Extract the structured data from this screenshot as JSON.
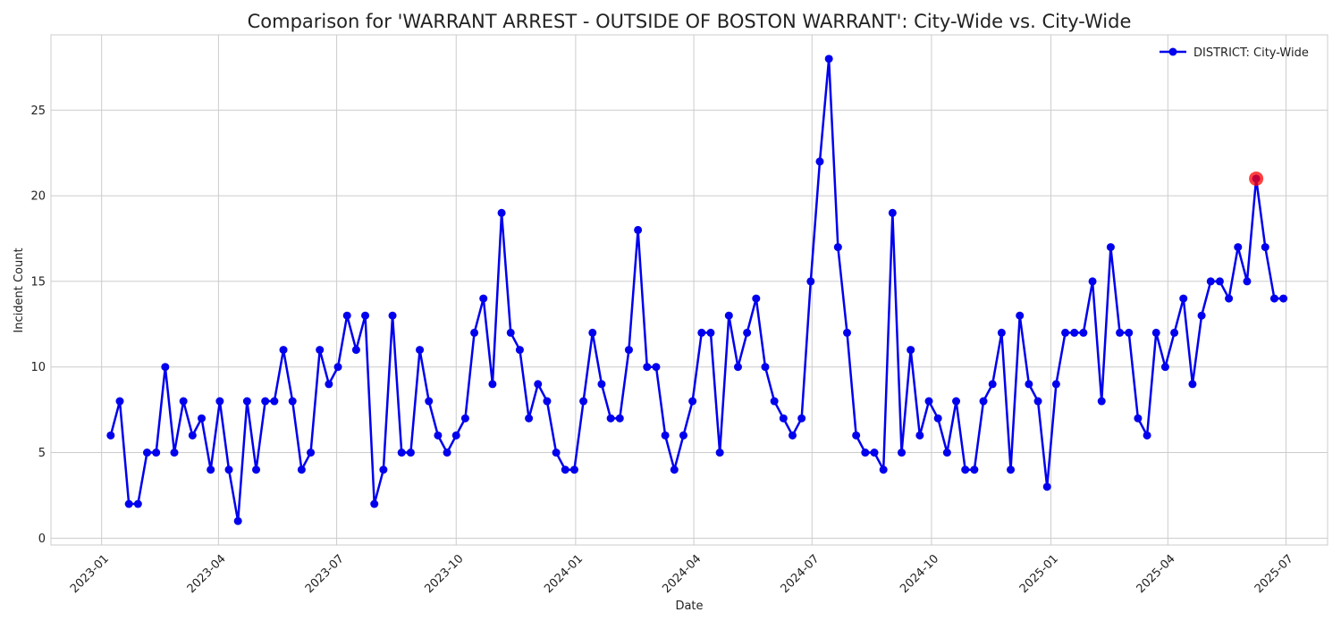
{
  "chart_data": {
    "type": "line",
    "title": "Comparison for 'WARRANT ARREST - OUTSIDE OF BOSTON WARRANT': City-Wide vs. City-Wide",
    "xlabel": "Date",
    "ylabel": "Incident Count",
    "xlim": [
      "2022-11-23",
      "2025-08-02"
    ],
    "ylim": [
      -0.4,
      29.4
    ],
    "x_ticks": [
      {
        "date": "2023-01-01",
        "label": "2023-01"
      },
      {
        "date": "2023-04-01",
        "label": "2023-04"
      },
      {
        "date": "2023-07-01",
        "label": "2023-07"
      },
      {
        "date": "2023-10-01",
        "label": "2023-10"
      },
      {
        "date": "2024-01-01",
        "label": "2024-01"
      },
      {
        "date": "2024-04-01",
        "label": "2024-04"
      },
      {
        "date": "2024-07-01",
        "label": "2024-07"
      },
      {
        "date": "2024-10-01",
        "label": "2024-10"
      },
      {
        "date": "2025-01-01",
        "label": "2025-01"
      },
      {
        "date": "2025-04-01",
        "label": "2025-04"
      },
      {
        "date": "2025-07-01",
        "label": "2025-07"
      }
    ],
    "y_ticks": [
      0,
      5,
      10,
      15,
      20,
      25
    ],
    "grid": true,
    "legend_position": "top-right",
    "series": [
      {
        "name": "DISTRICT: City-Wide",
        "color": "#0000ee",
        "points": [
          {
            "x": "2023-01-08",
            "y": 6
          },
          {
            "x": "2023-01-15",
            "y": 8
          },
          {
            "x": "2023-01-22",
            "y": 2
          },
          {
            "x": "2023-01-29",
            "y": 2
          },
          {
            "x": "2023-02-05",
            "y": 5
          },
          {
            "x": "2023-02-12",
            "y": 5
          },
          {
            "x": "2023-02-19",
            "y": 10
          },
          {
            "x": "2023-02-26",
            "y": 5
          },
          {
            "x": "2023-03-05",
            "y": 8
          },
          {
            "x": "2023-03-12",
            "y": 6
          },
          {
            "x": "2023-03-19",
            "y": 7
          },
          {
            "x": "2023-03-26",
            "y": 4
          },
          {
            "x": "2023-04-02",
            "y": 8
          },
          {
            "x": "2023-04-09",
            "y": 4
          },
          {
            "x": "2023-04-16",
            "y": 1
          },
          {
            "x": "2023-04-23",
            "y": 8
          },
          {
            "x": "2023-04-30",
            "y": 4
          },
          {
            "x": "2023-05-07",
            "y": 8
          },
          {
            "x": "2023-05-14",
            "y": 8
          },
          {
            "x": "2023-05-21",
            "y": 11
          },
          {
            "x": "2023-05-28",
            "y": 8
          },
          {
            "x": "2023-06-04",
            "y": 4
          },
          {
            "x": "2023-06-11",
            "y": 5
          },
          {
            "x": "2023-06-18",
            "y": 11
          },
          {
            "x": "2023-06-25",
            "y": 9
          },
          {
            "x": "2023-07-02",
            "y": 10
          },
          {
            "x": "2023-07-09",
            "y": 13
          },
          {
            "x": "2023-07-16",
            "y": 11
          },
          {
            "x": "2023-07-23",
            "y": 13
          },
          {
            "x": "2023-07-30",
            "y": 2
          },
          {
            "x": "2023-08-06",
            "y": 4
          },
          {
            "x": "2023-08-13",
            "y": 13
          },
          {
            "x": "2023-08-20",
            "y": 5
          },
          {
            "x": "2023-08-27",
            "y": 5
          },
          {
            "x": "2023-09-03",
            "y": 11
          },
          {
            "x": "2023-09-10",
            "y": 8
          },
          {
            "x": "2023-09-17",
            "y": 6
          },
          {
            "x": "2023-09-24",
            "y": 5
          },
          {
            "x": "2023-10-01",
            "y": 6
          },
          {
            "x": "2023-10-08",
            "y": 7
          },
          {
            "x": "2023-10-15",
            "y": 12
          },
          {
            "x": "2023-10-22",
            "y": 14
          },
          {
            "x": "2023-10-29",
            "y": 9
          },
          {
            "x": "2023-11-05",
            "y": 19
          },
          {
            "x": "2023-11-12",
            "y": 12
          },
          {
            "x": "2023-11-19",
            "y": 11
          },
          {
            "x": "2023-11-26",
            "y": 7
          },
          {
            "x": "2023-12-03",
            "y": 9
          },
          {
            "x": "2023-12-10",
            "y": 8
          },
          {
            "x": "2023-12-17",
            "y": 5
          },
          {
            "x": "2023-12-24",
            "y": 4
          },
          {
            "x": "2023-12-31",
            "y": 4
          },
          {
            "x": "2024-01-07",
            "y": 8
          },
          {
            "x": "2024-01-14",
            "y": 12
          },
          {
            "x": "2024-01-21",
            "y": 9
          },
          {
            "x": "2024-01-28",
            "y": 7
          },
          {
            "x": "2024-02-04",
            "y": 7
          },
          {
            "x": "2024-02-11",
            "y": 11
          },
          {
            "x": "2024-02-18",
            "y": 18
          },
          {
            "x": "2024-02-25",
            "y": 10
          },
          {
            "x": "2024-03-03",
            "y": 10
          },
          {
            "x": "2024-03-10",
            "y": 6
          },
          {
            "x": "2024-03-17",
            "y": 4
          },
          {
            "x": "2024-03-24",
            "y": 6
          },
          {
            "x": "2024-03-31",
            "y": 8
          },
          {
            "x": "2024-04-07",
            "y": 12
          },
          {
            "x": "2024-04-14",
            "y": 12
          },
          {
            "x": "2024-04-21",
            "y": 5
          },
          {
            "x": "2024-04-28",
            "y": 13
          },
          {
            "x": "2024-05-05",
            "y": 10
          },
          {
            "x": "2024-05-12",
            "y": 12
          },
          {
            "x": "2024-05-19",
            "y": 14
          },
          {
            "x": "2024-05-26",
            "y": 10
          },
          {
            "x": "2024-06-02",
            "y": 8
          },
          {
            "x": "2024-06-09",
            "y": 7
          },
          {
            "x": "2024-06-16",
            "y": 6
          },
          {
            "x": "2024-06-23",
            "y": 7
          },
          {
            "x": "2024-06-30",
            "y": 15
          },
          {
            "x": "2024-07-07",
            "y": 22
          },
          {
            "x": "2024-07-14",
            "y": 28
          },
          {
            "x": "2024-07-21",
            "y": 17
          },
          {
            "x": "2024-07-28",
            "y": 12
          },
          {
            "x": "2024-08-04",
            "y": 6
          },
          {
            "x": "2024-08-11",
            "y": 5
          },
          {
            "x": "2024-08-18",
            "y": 5
          },
          {
            "x": "2024-08-25",
            "y": 4
          },
          {
            "x": "2024-09-01",
            "y": 19
          },
          {
            "x": "2024-09-08",
            "y": 5
          },
          {
            "x": "2024-09-15",
            "y": 11
          },
          {
            "x": "2024-09-22",
            "y": 6
          },
          {
            "x": "2024-09-29",
            "y": 8
          },
          {
            "x": "2024-10-06",
            "y": 7
          },
          {
            "x": "2024-10-13",
            "y": 5
          },
          {
            "x": "2024-10-20",
            "y": 8
          },
          {
            "x": "2024-10-27",
            "y": 4
          },
          {
            "x": "2024-11-03",
            "y": 4
          },
          {
            "x": "2024-11-10",
            "y": 8
          },
          {
            "x": "2024-11-17",
            "y": 9
          },
          {
            "x": "2024-11-24",
            "y": 12
          },
          {
            "x": "2024-12-01",
            "y": 4
          },
          {
            "x": "2024-12-08",
            "y": 13
          },
          {
            "x": "2024-12-15",
            "y": 9
          },
          {
            "x": "2024-12-22",
            "y": 8
          },
          {
            "x": "2024-12-29",
            "y": 3
          },
          {
            "x": "2025-01-05",
            "y": 9
          },
          {
            "x": "2025-01-12",
            "y": 12
          },
          {
            "x": "2025-01-19",
            "y": 12
          },
          {
            "x": "2025-01-26",
            "y": 12
          },
          {
            "x": "2025-02-02",
            "y": 15
          },
          {
            "x": "2025-02-09",
            "y": 8
          },
          {
            "x": "2025-02-16",
            "y": 17
          },
          {
            "x": "2025-02-23",
            "y": 12
          },
          {
            "x": "2025-03-02",
            "y": 12
          },
          {
            "x": "2025-03-09",
            "y": 7
          },
          {
            "x": "2025-03-16",
            "y": 6
          },
          {
            "x": "2025-03-23",
            "y": 12
          },
          {
            "x": "2025-03-30",
            "y": 10
          },
          {
            "x": "2025-04-06",
            "y": 12
          },
          {
            "x": "2025-04-13",
            "y": 14
          },
          {
            "x": "2025-04-20",
            "y": 9
          },
          {
            "x": "2025-04-27",
            "y": 13
          },
          {
            "x": "2025-05-04",
            "y": 15
          },
          {
            "x": "2025-05-11",
            "y": 15
          },
          {
            "x": "2025-05-18",
            "y": 14
          },
          {
            "x": "2025-05-25",
            "y": 17
          },
          {
            "x": "2025-06-01",
            "y": 15
          },
          {
            "x": "2025-06-08",
            "y": 21
          },
          {
            "x": "2025-06-15",
            "y": 17
          },
          {
            "x": "2025-06-22",
            "y": 14
          },
          {
            "x": "2025-06-29",
            "y": 14
          }
        ]
      }
    ],
    "highlight": {
      "x": "2025-06-08",
      "y": 21,
      "color": "#ff0000"
    }
  }
}
